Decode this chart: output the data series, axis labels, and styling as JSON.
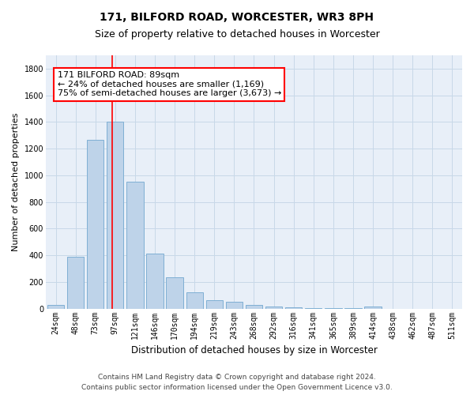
{
  "title": "171, BILFORD ROAD, WORCESTER, WR3 8PH",
  "subtitle": "Size of property relative to detached houses in Worcester",
  "xlabel": "Distribution of detached houses by size in Worcester",
  "ylabel": "Number of detached properties",
  "bar_labels": [
    "24sqm",
    "48sqm",
    "73sqm",
    "97sqm",
    "121sqm",
    "146sqm",
    "170sqm",
    "194sqm",
    "219sqm",
    "243sqm",
    "268sqm",
    "292sqm",
    "316sqm",
    "341sqm",
    "365sqm",
    "389sqm",
    "414sqm",
    "438sqm",
    "462sqm",
    "487sqm",
    "511sqm"
  ],
  "bar_values": [
    25,
    390,
    1265,
    1400,
    950,
    410,
    235,
    120,
    65,
    50,
    30,
    15,
    8,
    5,
    3,
    2,
    15,
    0,
    0,
    0,
    0
  ],
  "bar_color": "#bed3e9",
  "bar_edge_color": "#7fafd4",
  "property_line_x": 2.85,
  "annotation_line1": "171 BILFORD ROAD: 89sqm",
  "annotation_line2": "← 24% of detached houses are smaller (1,169)",
  "annotation_line3": "75% of semi-detached houses are larger (3,673) →",
  "ylim": [
    0,
    1900
  ],
  "yticks": [
    0,
    200,
    400,
    600,
    800,
    1000,
    1200,
    1400,
    1600,
    1800
  ],
  "footer_line1": "Contains HM Land Registry data © Crown copyright and database right 2024.",
  "footer_line2": "Contains public sector information licensed under the Open Government Licence v3.0.",
  "bg_color": "#ffffff",
  "plot_bg_color": "#e8eff8",
  "grid_color": "#c8d8e8",
  "title_fontsize": 10,
  "subtitle_fontsize": 9,
  "xlabel_fontsize": 8.5,
  "ylabel_fontsize": 8,
  "tick_fontsize": 7,
  "annotation_fontsize": 8,
  "footer_fontsize": 6.5
}
